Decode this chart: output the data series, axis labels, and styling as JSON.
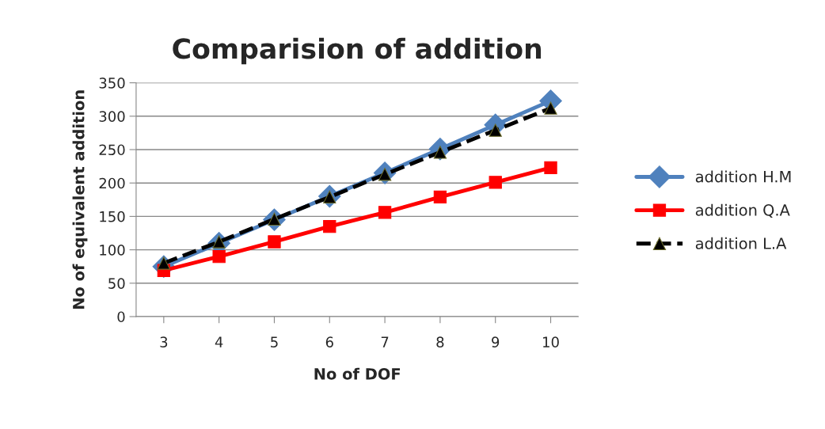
{
  "chart_data": {
    "type": "line",
    "title": "Comparision of addition",
    "xlabel": "No of DOF",
    "ylabel": "No of equivalent addition",
    "categories": [
      "3",
      "4",
      "5",
      "6",
      "7",
      "8",
      "9",
      "10"
    ],
    "series": [
      {
        "name": "addition H.M",
        "color": "#4f81bd",
        "marker": "diamond",
        "line_style": "solid",
        "values": [
          75,
          110,
          145,
          180,
          215,
          251,
          287,
          323
        ]
      },
      {
        "name": "addition Q.A",
        "color": "#ff0000",
        "marker": "square",
        "line_style": "solid",
        "values": [
          69,
          90,
          112,
          135,
          156,
          179,
          201,
          223
        ]
      },
      {
        "name": "addition L.A",
        "color": "#000000",
        "marker": "triangle",
        "line_style": "dashed",
        "values": [
          80,
          112,
          146,
          179,
          213,
          246,
          279,
          312
        ]
      }
    ],
    "ylim": [
      0,
      350
    ],
    "yticks": [
      0,
      50,
      100,
      150,
      200,
      250,
      300,
      350
    ],
    "grid": "y",
    "legend": "right"
  }
}
